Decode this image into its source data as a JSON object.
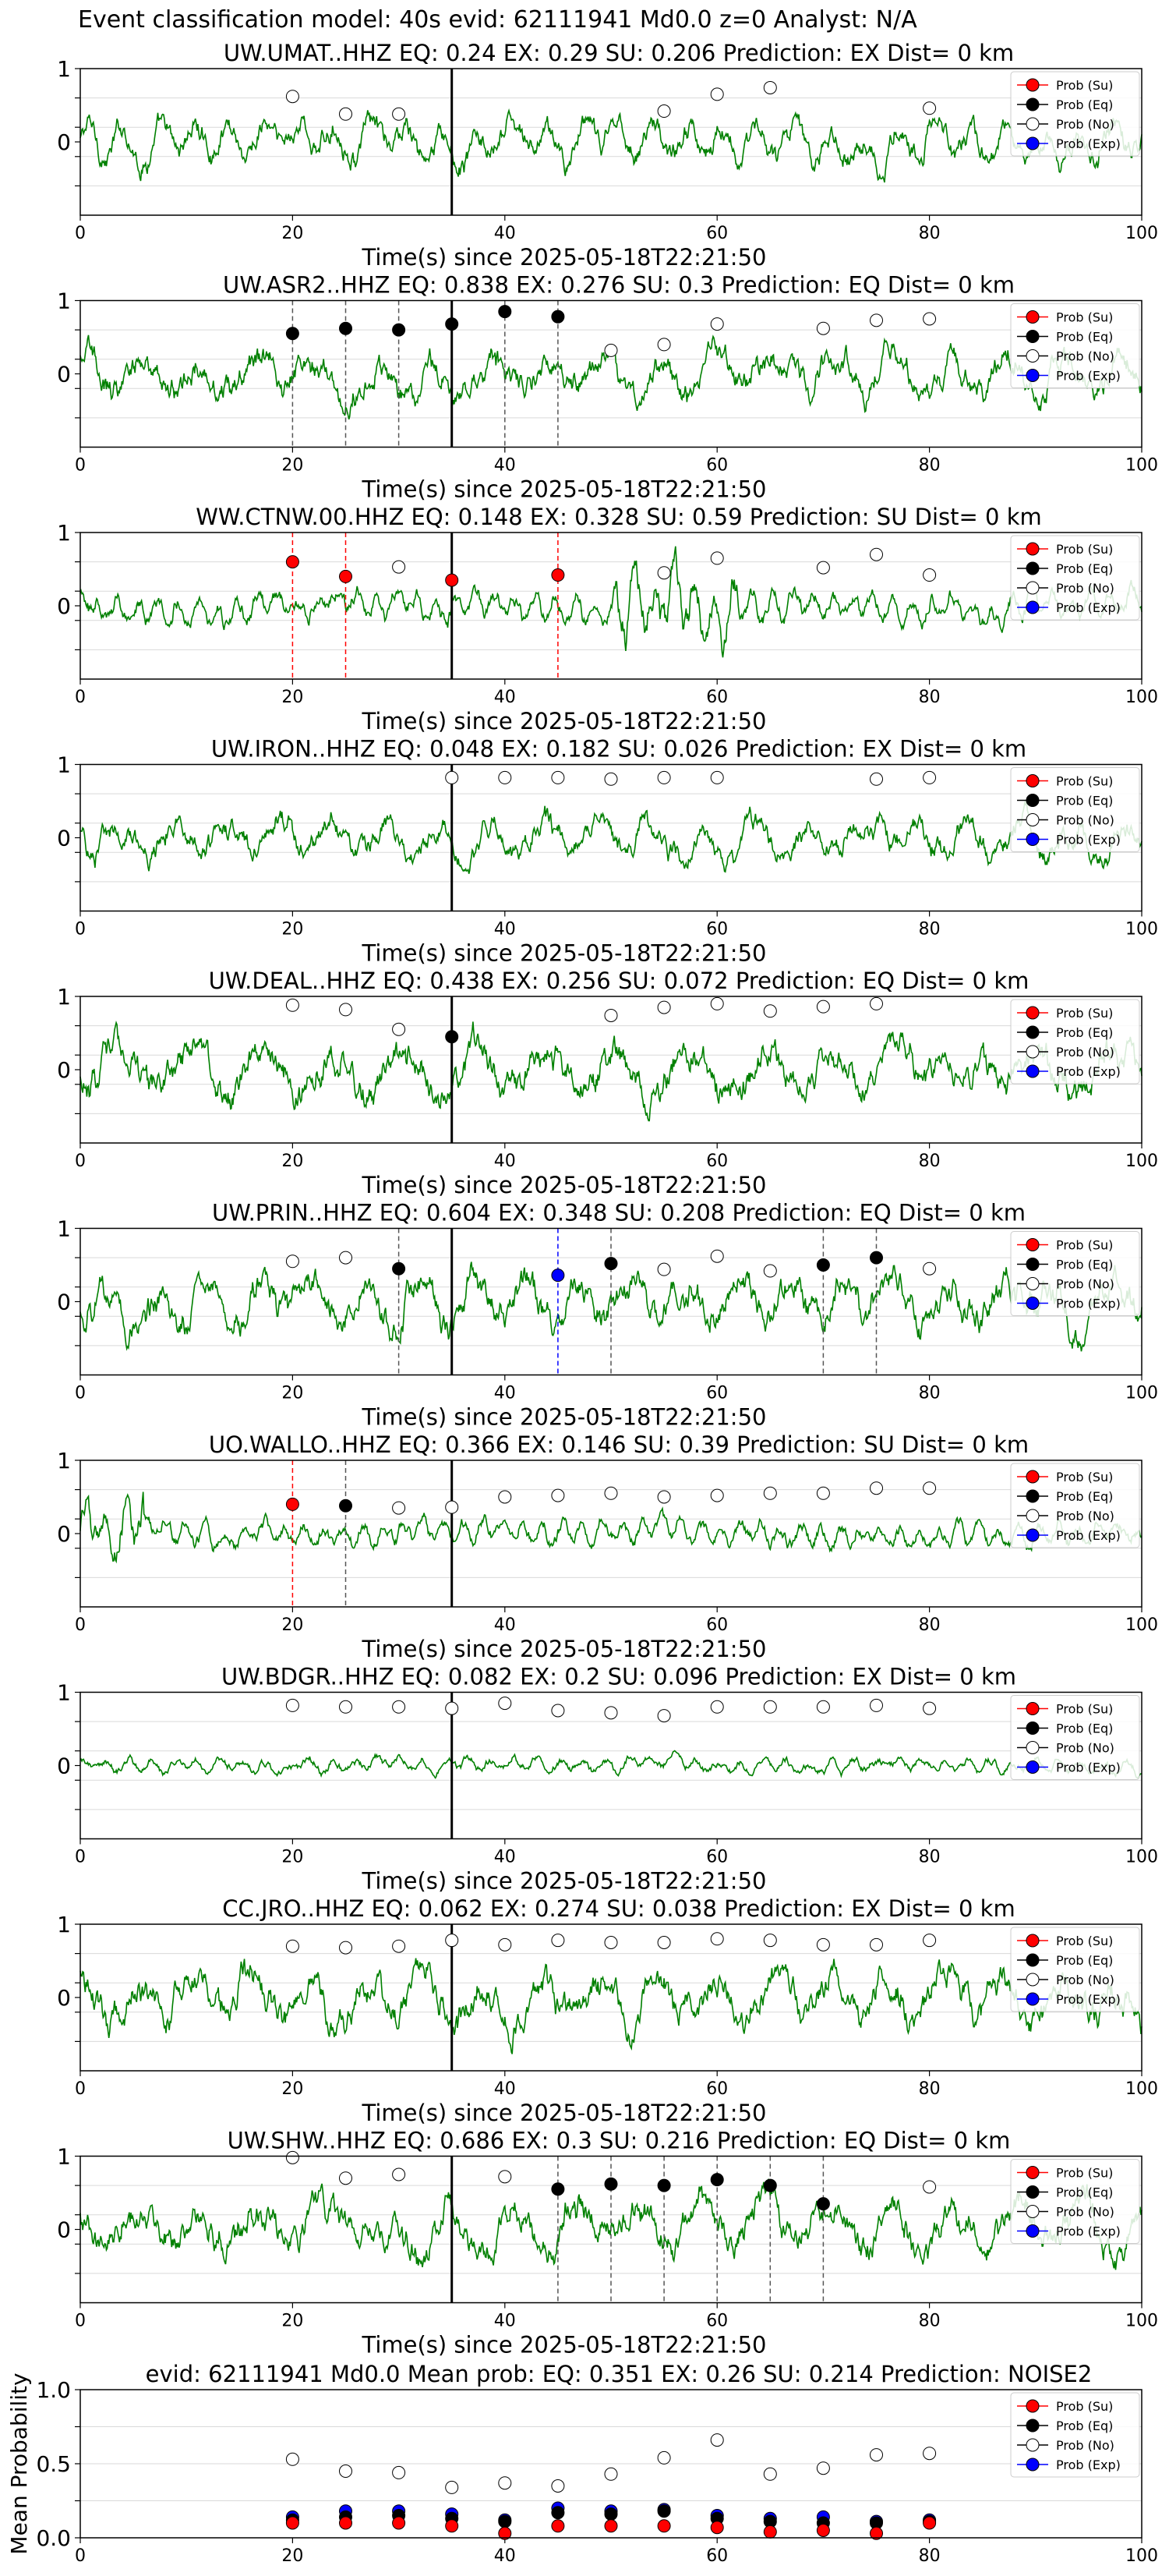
{
  "figure": {
    "supertitle": "Event classification model: 40s evid: 62111941 Md0.0 z=0 Analyst: N/A",
    "colors": {
      "waveform": "#008000",
      "su": "#ff0000",
      "eq": "#000000",
      "no": "#ffffff",
      "exp": "#0000ff",
      "origin_line": "#000000",
      "grid": "#d9d9d9"
    },
    "legend_labels": [
      "Prob (Su)",
      "Prob (Eq)",
      "Prob (No)",
      "Prob (Exp)"
    ]
  },
  "chart_data": [
    {
      "type": "line",
      "title": "UW.UMAT..HHZ   EQ: 0.24  EX: 0.29  SU: 0.206   Prediction: EX    Dist= 0 km",
      "xlabel": "Time(s) since 2025-05-18T22:21:50",
      "ylabel": "",
      "xlim": [
        0,
        100
      ],
      "ylim": [
        -1,
        1
      ],
      "xticks": [
        "0",
        "20",
        "40",
        "60",
        "80",
        "100"
      ],
      "yticks": [
        "1",
        "0"
      ],
      "origin_time": 35,
      "legend": "top-right",
      "series": [
        {
          "name": "Prob (No)",
          "x": [
            20,
            25,
            30,
            55,
            60,
            65,
            80
          ],
          "y": [
            0.62,
            0.38,
            0.38,
            0.42,
            0.65,
            0.74,
            0.46
          ]
        }
      ],
      "markers": []
    },
    {
      "type": "line",
      "title": "UW.ASR2..HHZ   EQ: 0.838  EX: 0.276  SU: 0.3   Prediction: EQ    Dist= 0 km",
      "xlabel": "Time(s) since 2025-05-18T22:21:50",
      "ylabel": "",
      "xlim": [
        0,
        100
      ],
      "ylim": [
        -1,
        1
      ],
      "xticks": [
        "0",
        "20",
        "40",
        "60",
        "80",
        "100"
      ],
      "yticks": [
        "1",
        "0"
      ],
      "origin_time": 35,
      "legend": "top-right",
      "series": [
        {
          "name": "Prob (Eq)",
          "x": [
            20,
            25,
            30,
            35,
            40,
            45
          ],
          "y": [
            0.55,
            0.62,
            0.6,
            0.68,
            0.85,
            0.78
          ]
        },
        {
          "name": "Prob (No)",
          "x": [
            50,
            55,
            60,
            70,
            75,
            80
          ],
          "y": [
            0.32,
            0.4,
            0.68,
            0.62,
            0.73,
            0.75
          ]
        }
      ],
      "markers": [
        {
          "x": 20,
          "class": "eq"
        },
        {
          "x": 25,
          "class": "eq"
        },
        {
          "x": 30,
          "class": "eq"
        },
        {
          "x": 35,
          "class": "eq"
        },
        {
          "x": 40,
          "class": "eq"
        },
        {
          "x": 45,
          "class": "eq"
        }
      ]
    },
    {
      "type": "line",
      "title": "WW.CTNW.00.HHZ   EQ: 0.148  EX: 0.328  SU: 0.59   Prediction: SU    Dist= 0 km",
      "xlabel": "Time(s) since 2025-05-18T22:21:50",
      "ylabel": "",
      "xlim": [
        0,
        100
      ],
      "ylim": [
        -1,
        1
      ],
      "xticks": [
        "0",
        "20",
        "40",
        "60",
        "80",
        "100"
      ],
      "yticks": [
        "1",
        "0"
      ],
      "origin_time": 35,
      "legend": "top-right",
      "series": [
        {
          "name": "Prob (Su)",
          "x": [
            20,
            25,
            35,
            45
          ],
          "y": [
            0.6,
            0.4,
            0.35,
            0.42
          ]
        },
        {
          "name": "Prob (No)",
          "x": [
            30,
            55,
            60,
            70,
            75,
            80
          ],
          "y": [
            0.53,
            0.45,
            0.65,
            0.52,
            0.7,
            0.42
          ]
        }
      ],
      "markers": [
        {
          "x": 20,
          "class": "su"
        },
        {
          "x": 25,
          "class": "su"
        },
        {
          "x": 45,
          "class": "su"
        }
      ]
    },
    {
      "type": "line",
      "title": "UW.IRON..HHZ   EQ: 0.048  EX: 0.182  SU: 0.026   Prediction: EX    Dist= 0 km",
      "xlabel": "Time(s) since 2025-05-18T22:21:50",
      "ylabel": "",
      "xlim": [
        0,
        100
      ],
      "ylim": [
        -1,
        1
      ],
      "xticks": [
        "0",
        "20",
        "40",
        "60",
        "80",
        "100"
      ],
      "yticks": [
        "1",
        "0"
      ],
      "origin_time": 35,
      "legend": "top-right",
      "series": [
        {
          "name": "Prob (No)",
          "x": [
            35,
            40,
            45,
            50,
            55,
            60,
            75,
            80
          ],
          "y": [
            0.82,
            0.82,
            0.82,
            0.8,
            0.82,
            0.82,
            0.8,
            0.82
          ]
        }
      ],
      "markers": []
    },
    {
      "type": "line",
      "title": "UW.DEAL..HHZ   EQ: 0.438  EX: 0.256  SU: 0.072   Prediction: EQ    Dist= 0 km",
      "xlabel": "Time(s) since 2025-05-18T22:21:50",
      "ylabel": "",
      "xlim": [
        0,
        100
      ],
      "ylim": [
        -1,
        1
      ],
      "xticks": [
        "0",
        "20",
        "40",
        "60",
        "80",
        "100"
      ],
      "yticks": [
        "1",
        "0"
      ],
      "origin_time": 35,
      "legend": "top-right",
      "series": [
        {
          "name": "Prob (Eq)",
          "x": [
            35
          ],
          "y": [
            0.45
          ]
        },
        {
          "name": "Prob (No)",
          "x": [
            20,
            25,
            30,
            50,
            55,
            60,
            65,
            70,
            75
          ],
          "y": [
            0.88,
            0.82,
            0.55,
            0.74,
            0.85,
            0.9,
            0.8,
            0.86,
            0.9
          ]
        }
      ],
      "markers": []
    },
    {
      "type": "line",
      "title": "UW.PRIN..HHZ   EQ: 0.604  EX: 0.348  SU: 0.208   Prediction: EQ    Dist= 0 km",
      "xlabel": "Time(s) since 2025-05-18T22:21:50",
      "ylabel": "",
      "xlim": [
        0,
        100
      ],
      "ylim": [
        -1,
        1
      ],
      "xticks": [
        "0",
        "20",
        "40",
        "60",
        "80",
        "100"
      ],
      "yticks": [
        "1",
        "0"
      ],
      "origin_time": 35,
      "legend": "top-right",
      "series": [
        {
          "name": "Prob (Eq)",
          "x": [
            30,
            50,
            70,
            75
          ],
          "y": [
            0.45,
            0.52,
            0.5,
            0.6
          ]
        },
        {
          "name": "Prob (Exp)",
          "x": [
            45
          ],
          "y": [
            0.36
          ]
        },
        {
          "name": "Prob (No)",
          "x": [
            20,
            25,
            55,
            60,
            65,
            80
          ],
          "y": [
            0.55,
            0.6,
            0.44,
            0.62,
            0.42,
            0.45
          ]
        }
      ],
      "markers": [
        {
          "x": 30,
          "class": "eq"
        },
        {
          "x": 45,
          "class": "exp"
        },
        {
          "x": 50,
          "class": "eq"
        },
        {
          "x": 70,
          "class": "eq"
        },
        {
          "x": 75,
          "class": "eq"
        }
      ]
    },
    {
      "type": "line",
      "title": "UO.WALLO..HHZ   EQ: 0.366  EX: 0.146  SU: 0.39   Prediction: SU    Dist= 0 km",
      "xlabel": "Time(s) since 2025-05-18T22:21:50",
      "ylabel": "",
      "xlim": [
        0,
        100
      ],
      "ylim": [
        -1,
        1
      ],
      "xticks": [
        "0",
        "20",
        "40",
        "60",
        "80",
        "100"
      ],
      "yticks": [
        "1",
        "0"
      ],
      "origin_time": 35,
      "legend": "top-right",
      "series": [
        {
          "name": "Prob (Su)",
          "x": [
            20
          ],
          "y": [
            0.4
          ]
        },
        {
          "name": "Prob (Eq)",
          "x": [
            25
          ],
          "y": [
            0.38
          ]
        },
        {
          "name": "Prob (No)",
          "x": [
            30,
            35,
            40,
            45,
            50,
            55,
            60,
            65,
            70,
            75,
            80
          ],
          "y": [
            0.35,
            0.36,
            0.5,
            0.52,
            0.55,
            0.5,
            0.52,
            0.55,
            0.55,
            0.62,
            0.62
          ]
        }
      ],
      "markers": [
        {
          "x": 20,
          "class": "su"
        },
        {
          "x": 25,
          "class": "eq"
        }
      ]
    },
    {
      "type": "line",
      "title": "UW.BDGR..HHZ   EQ: 0.082  EX: 0.2  SU: 0.096   Prediction: EX    Dist= 0 km",
      "xlabel": "Time(s) since 2025-05-18T22:21:50",
      "ylabel": "",
      "xlim": [
        0,
        100
      ],
      "ylim": [
        -1,
        1
      ],
      "xticks": [
        "0",
        "20",
        "40",
        "60",
        "80",
        "100"
      ],
      "yticks": [
        "1",
        "0"
      ],
      "origin_time": 35,
      "legend": "top-right",
      "series": [
        {
          "name": "Prob (No)",
          "x": [
            20,
            25,
            30,
            35,
            40,
            45,
            50,
            55,
            60,
            65,
            70,
            75,
            80
          ],
          "y": [
            0.82,
            0.8,
            0.8,
            0.78,
            0.85,
            0.75,
            0.72,
            0.68,
            0.8,
            0.8,
            0.8,
            0.82,
            0.78
          ]
        }
      ],
      "markers": []
    },
    {
      "type": "line",
      "title": "CC.JRO..HHZ   EQ: 0.062  EX: 0.274  SU: 0.038   Prediction: EX    Dist= 0 km",
      "xlabel": "Time(s) since 2025-05-18T22:21:50",
      "ylabel": "",
      "xlim": [
        0,
        100
      ],
      "ylim": [
        -1,
        1
      ],
      "xticks": [
        "0",
        "20",
        "40",
        "60",
        "80",
        "100"
      ],
      "yticks": [
        "1",
        "0"
      ],
      "origin_time": 35,
      "legend": "top-right",
      "series": [
        {
          "name": "Prob (No)",
          "x": [
            20,
            25,
            30,
            35,
            40,
            45,
            50,
            55,
            60,
            65,
            70,
            75,
            80
          ],
          "y": [
            0.7,
            0.68,
            0.7,
            0.78,
            0.72,
            0.78,
            0.75,
            0.75,
            0.8,
            0.78,
            0.72,
            0.72,
            0.78
          ]
        }
      ],
      "markers": []
    },
    {
      "type": "line",
      "title": "UW.SHW..HHZ   EQ: 0.686  EX: 0.3  SU: 0.216   Prediction: EQ    Dist= 0 km",
      "xlabel": "Time(s) since 2025-05-18T22:21:50",
      "ylabel": "",
      "xlim": [
        0,
        100
      ],
      "ylim": [
        -1,
        1
      ],
      "xticks": [
        "0",
        "20",
        "40",
        "60",
        "80",
        "100"
      ],
      "yticks": [
        "1",
        "0"
      ],
      "origin_time": 35,
      "legend": "top-right",
      "series": [
        {
          "name": "Prob (Eq)",
          "x": [
            45,
            50,
            55,
            60,
            65,
            70
          ],
          "y": [
            0.55,
            0.62,
            0.6,
            0.68,
            0.6,
            0.35
          ]
        },
        {
          "name": "Prob (No)",
          "x": [
            20,
            25,
            30,
            40,
            80
          ],
          "y": [
            0.98,
            0.7,
            0.75,
            0.72,
            0.58
          ]
        }
      ],
      "markers": [
        {
          "x": 45,
          "class": "eq"
        },
        {
          "x": 50,
          "class": "eq"
        },
        {
          "x": 55,
          "class": "eq"
        },
        {
          "x": 60,
          "class": "eq"
        },
        {
          "x": 65,
          "class": "eq"
        },
        {
          "x": 70,
          "class": "eq"
        }
      ]
    },
    {
      "type": "scatter",
      "title": "evid: 62111941  Md0.0   Mean prob:   EQ: 0.351  EX: 0.26  SU: 0.214   Prediction: NOISE2",
      "xlabel": "",
      "ylabel": "Mean Probability",
      "xlim": [
        0,
        100
      ],
      "ylim": [
        0,
        1
      ],
      "xticks": [
        "0",
        "20",
        "40",
        "60",
        "80",
        "100"
      ],
      "yticks": [
        "0.0",
        "0.5",
        "1.0"
      ],
      "legend": "top-right",
      "series": [
        {
          "name": "Prob (No)",
          "x": [
            20,
            25,
            30,
            35,
            40,
            45,
            50,
            55,
            60,
            65,
            70,
            75,
            80
          ],
          "y": [
            0.53,
            0.45,
            0.44,
            0.34,
            0.37,
            0.35,
            0.43,
            0.54,
            0.66,
            0.43,
            0.47,
            0.56,
            0.57
          ]
        },
        {
          "name": "Prob (Exp)",
          "x": [
            20,
            25,
            30,
            35,
            40,
            45,
            50,
            55,
            60,
            65,
            70,
            75,
            80
          ],
          "y": [
            0.14,
            0.18,
            0.18,
            0.16,
            0.12,
            0.2,
            0.18,
            0.19,
            0.15,
            0.13,
            0.14,
            0.11,
            0.12
          ]
        },
        {
          "name": "Prob (Eq)",
          "x": [
            20,
            25,
            30,
            35,
            40,
            45,
            50,
            55,
            60,
            65,
            70,
            75,
            80
          ],
          "y": [
            0.12,
            0.14,
            0.15,
            0.13,
            0.11,
            0.17,
            0.16,
            0.18,
            0.13,
            0.11,
            0.1,
            0.1,
            0.11
          ]
        },
        {
          "name": "Prob (Su)",
          "x": [
            20,
            25,
            30,
            35,
            40,
            45,
            50,
            55,
            60,
            65,
            70,
            75,
            80
          ],
          "y": [
            0.1,
            0.1,
            0.1,
            0.08,
            0.03,
            0.08,
            0.08,
            0.08,
            0.07,
            0.04,
            0.05,
            0.03,
            0.1
          ]
        }
      ]
    }
  ]
}
